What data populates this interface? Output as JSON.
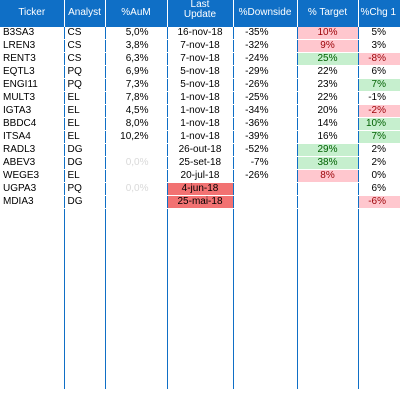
{
  "headers": {
    "ticker": "Ticker",
    "analyst": "Analyst",
    "aum": "%AuM",
    "last_update_line1": "Last",
    "last_update_line2": "Update",
    "downside": "%Downside",
    "target": "% Target",
    "chg": "%Chg 1"
  },
  "rows": [
    {
      "ticker": "B3SA3",
      "analyst": "CS",
      "aum": "5,0%",
      "date": "16-nov-18",
      "downside": "-35%",
      "target": "10%",
      "chg": "5%",
      "target_status": "red",
      "chg_status": "",
      "date_status": "",
      "aum_faded": false
    },
    {
      "ticker": "LREN3",
      "analyst": "CS",
      "aum": "3,8%",
      "date": "7-nov-18",
      "downside": "-32%",
      "target": "9%",
      "chg": "3%",
      "target_status": "red",
      "chg_status": "",
      "date_status": "",
      "aum_faded": false
    },
    {
      "ticker": "RENT3",
      "analyst": "CS",
      "aum": "6,3%",
      "date": "7-nov-18",
      "downside": "-24%",
      "target": "25%",
      "chg": "-8%",
      "target_status": "green",
      "chg_status": "red",
      "date_status": "",
      "aum_faded": false
    },
    {
      "ticker": "EQTL3",
      "analyst": "PQ",
      "aum": "6,9%",
      "date": "5-nov-18",
      "downside": "-29%",
      "target": "22%",
      "chg": "6%",
      "target_status": "",
      "chg_status": "",
      "date_status": "",
      "aum_faded": false
    },
    {
      "ticker": "ENGI11",
      "analyst": "PQ",
      "aum": "7,3%",
      "date": "5-nov-18",
      "downside": "-26%",
      "target": "23%",
      "chg": "7%",
      "target_status": "",
      "chg_status": "green",
      "date_status": "",
      "aum_faded": false
    },
    {
      "ticker": "MULT3",
      "analyst": "EL",
      "aum": "7,8%",
      "date": "1-nov-18",
      "downside": "-25%",
      "target": "22%",
      "chg": "-1%",
      "target_status": "",
      "chg_status": "",
      "date_status": "",
      "aum_faded": false
    },
    {
      "ticker": "IGTA3",
      "analyst": "EL",
      "aum": "4,5%",
      "date": "1-nov-18",
      "downside": "-34%",
      "target": "20%",
      "chg": "-2%",
      "target_status": "",
      "chg_status": "red",
      "date_status": "",
      "aum_faded": false
    },
    {
      "ticker": "BBDC4",
      "analyst": "EL",
      "aum": "8,0%",
      "date": "1-nov-18",
      "downside": "-36%",
      "target": "14%",
      "chg": "10%",
      "target_status": "",
      "chg_status": "green",
      "date_status": "",
      "aum_faded": false
    },
    {
      "ticker": "ITSA4",
      "analyst": "EL",
      "aum": "10,2%",
      "date": "1-nov-18",
      "downside": "-39%",
      "target": "16%",
      "chg": "7%",
      "target_status": "",
      "chg_status": "green",
      "date_status": "",
      "aum_faded": false
    },
    {
      "ticker": "RADL3",
      "analyst": "DG",
      "aum": "",
      "date": "26-out-18",
      "downside": "-52%",
      "target": "29%",
      "chg": "2%",
      "target_status": "green",
      "chg_status": "",
      "date_status": "",
      "aum_faded": false
    },
    {
      "ticker": "ABEV3",
      "analyst": "DG",
      "aum": "0,0%",
      "date": "25-set-18",
      "downside": "-7%",
      "target": "38%",
      "chg": "2%",
      "target_status": "green",
      "chg_status": "",
      "date_status": "",
      "aum_faded": true
    },
    {
      "ticker": "WEGE3",
      "analyst": "EL",
      "aum": "",
      "date": "20-jul-18",
      "downside": "-26%",
      "target": "8%",
      "chg": "0%",
      "target_status": "red",
      "chg_status": "",
      "date_status": "",
      "aum_faded": false
    },
    {
      "ticker": "UGPA3",
      "analyst": "PQ",
      "aum": "0,0%",
      "date": "4-jun-18",
      "downside": "",
      "target": "",
      "chg": "6%",
      "target_status": "",
      "chg_status": "",
      "date_status": "strong",
      "aum_faded": true
    },
    {
      "ticker": "MDIA3",
      "analyst": "DG",
      "aum": "",
      "date": "25-mai-18",
      "downside": "",
      "target": "",
      "chg": "-6%",
      "target_status": "",
      "chg_status": "red",
      "date_status": "strong",
      "aum_faded": false
    }
  ]
}
